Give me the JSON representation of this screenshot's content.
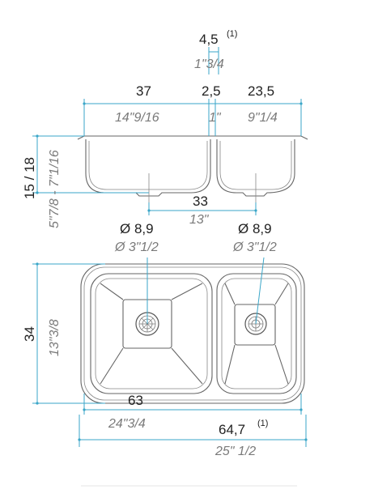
{
  "top_view": {
    "overflow_width": {
      "metric": "4,5",
      "sup": "(1)",
      "imperial": "1\"3/4"
    },
    "left_bowl_width": {
      "metric": "37",
      "imperial": "14\"9/16"
    },
    "divider_width": {
      "metric": "2,5",
      "imperial": "1\""
    },
    "right_bowl_width": {
      "metric": "23,5",
      "imperial": "9\"1/4"
    },
    "depth": {
      "metric": "15 / 18",
      "imperial": "5\"7/8 - 7\"1/16"
    },
    "drain_spacing": {
      "metric": "33",
      "imperial": "13\""
    }
  },
  "plan_view": {
    "left_drain": {
      "metric": "Ø 8,9",
      "imperial": "Ø 3\"1/2"
    },
    "right_drain": {
      "metric": "Ø 8,9",
      "imperial": "Ø 3\"1/2"
    },
    "height": {
      "metric": "34",
      "imperial": "13\"3/8"
    },
    "inner_width": {
      "metric": "63",
      "imperial": "24\"3/4"
    },
    "outer_width": {
      "metric": "64,7",
      "sup": "(1)",
      "imperial": "25\" 1/2"
    }
  },
  "colors": {
    "dimension_line": "#3aa6c8",
    "outline": "#666666",
    "metric_text": "#222222",
    "imperial_text": "#7a7a7a"
  }
}
